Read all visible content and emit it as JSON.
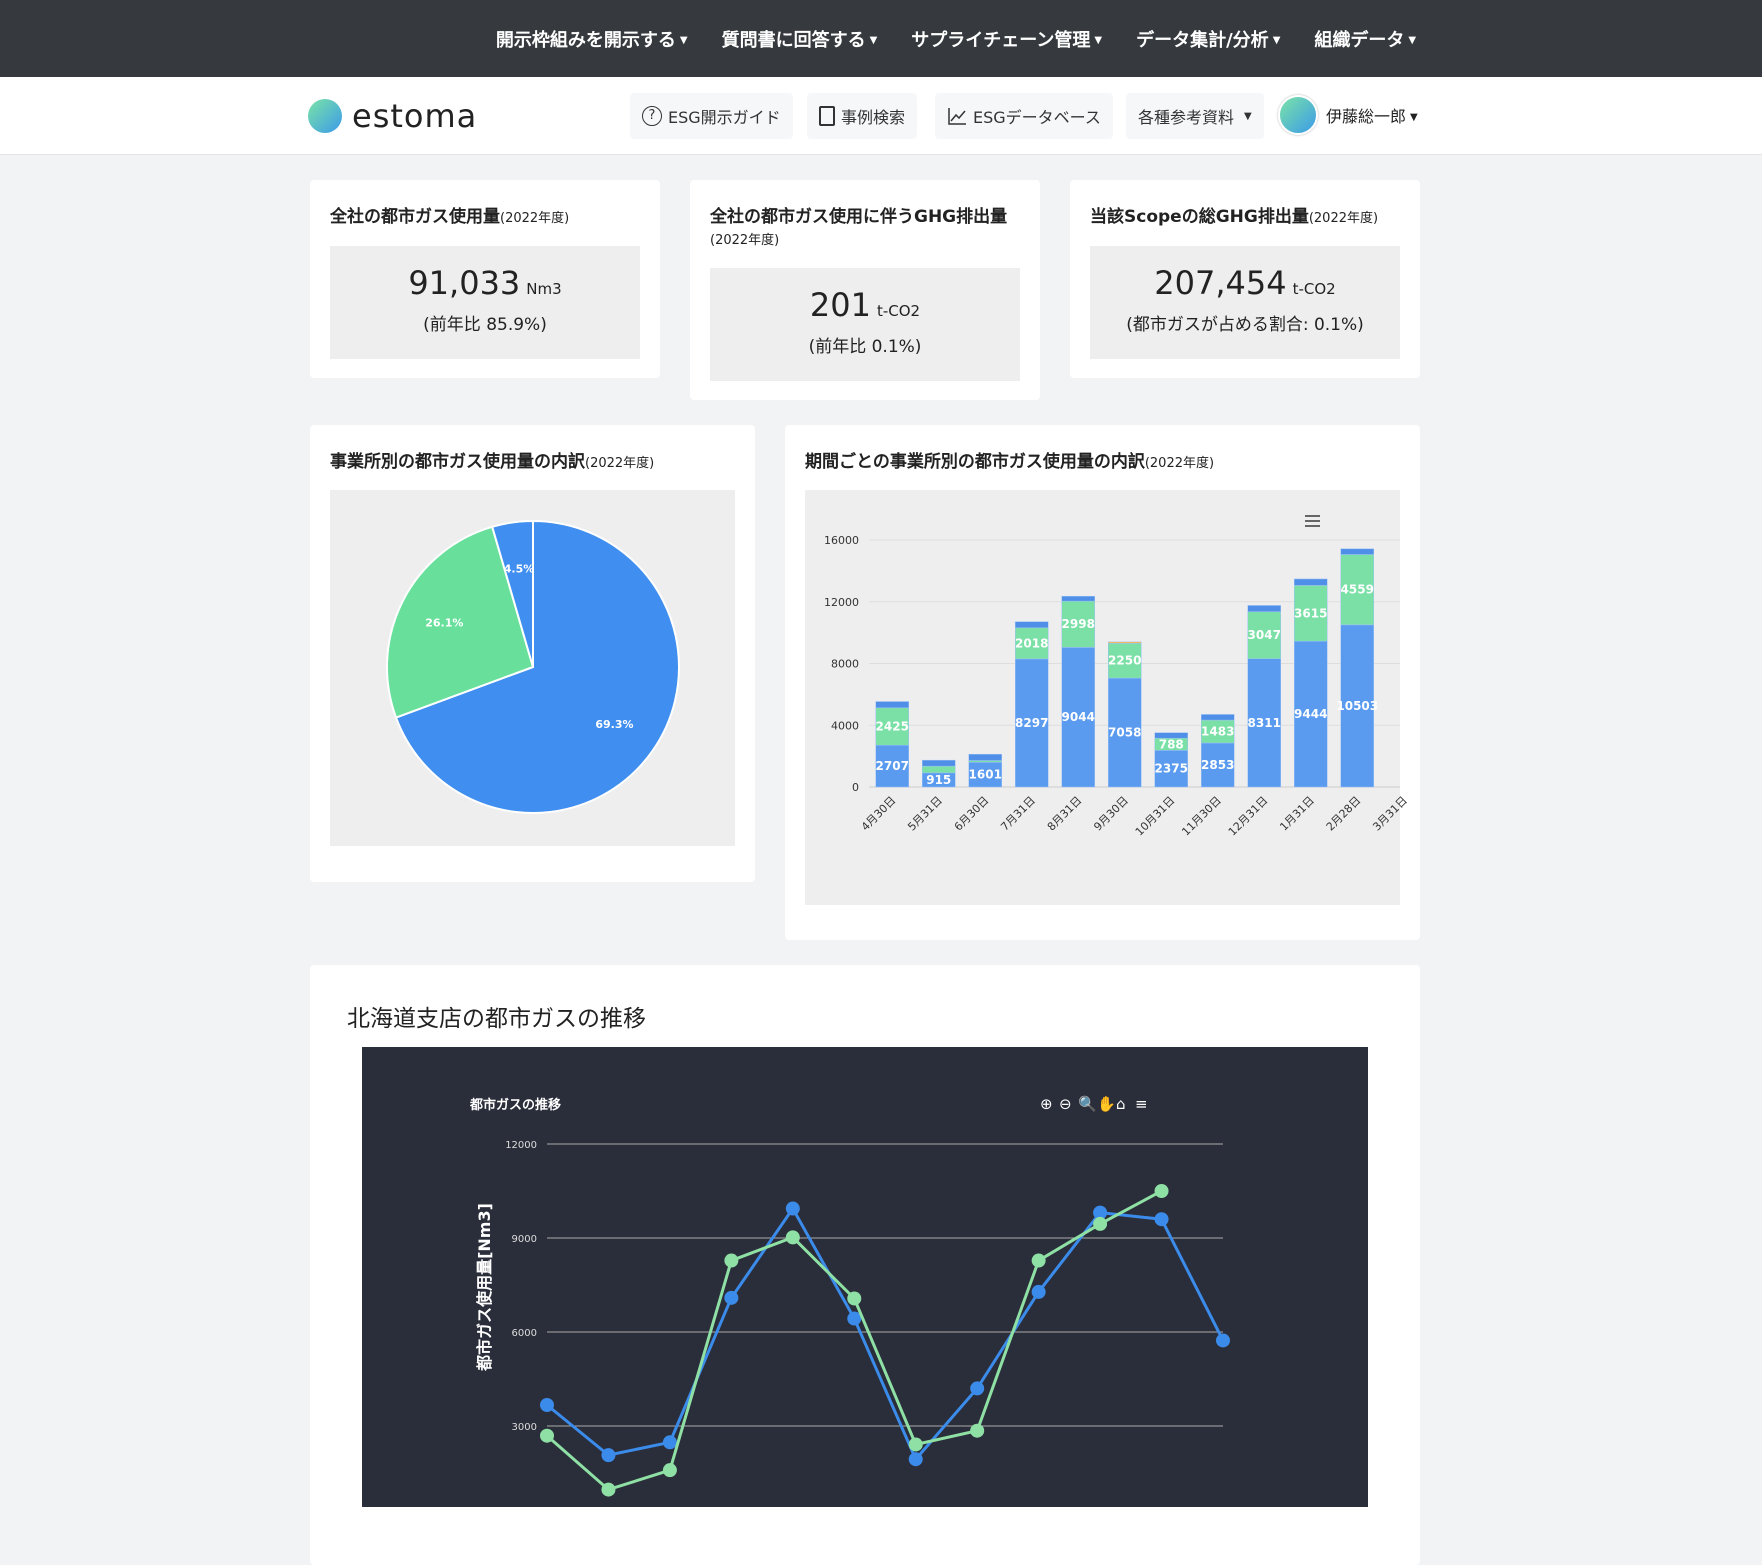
{
  "topnav": [
    {
      "label": "開示枠組みを開示する"
    },
    {
      "label": "質問書に回答する"
    },
    {
      "label": "サプライチェーン管理"
    },
    {
      "label": "データ集計/分析"
    },
    {
      "label": "組織データ"
    }
  ],
  "header": {
    "logo": "estoma",
    "buttons": [
      {
        "label": "ESG開示ガイド",
        "icon": "question-circle-icon"
      },
      {
        "label": "事例検索",
        "icon": "book-icon"
      },
      {
        "label": "ESGデータベース",
        "icon": "line-chart-icon"
      },
      {
        "label": "各種参考資料"
      }
    ],
    "user": "伊藤総一郎"
  },
  "kpis": [
    {
      "title": "全社の都市ガス使用量",
      "period": "(2022年度)",
      "value": "91,033",
      "unit": "Nm3",
      "sub": "(前年比 85.9%)"
    },
    {
      "title": "全社の都市ガス使用に伴うGHG排出量",
      "period": "(2022年度)",
      "value": "201",
      "unit": "t-CO2",
      "sub": "(前年比 0.1%)"
    },
    {
      "title": "当該Scopeの総GHG排出量",
      "period": "(2022年度)",
      "value": "207,454",
      "unit": "t-CO2",
      "sub": "(都市ガスが占める割合: 0.1%)"
    }
  ],
  "pie_card": {
    "title": "事業所別の都市ガス使用量の内訳",
    "period": "(2022年度)"
  },
  "bar_card": {
    "title": "期間ごとの事業所別の都市ガス使用量の内訳",
    "period": "(2022年度)"
  },
  "line_card": {
    "title": "北海道支店の都市ガスの推移"
  },
  "chart_data": [
    {
      "type": "pie",
      "slices": [
        {
          "value": 69.3,
          "label": "69.3%",
          "color": "#3f8ef0"
        },
        {
          "value": 26.1,
          "label": "26.1%",
          "color": "#68e09c"
        },
        {
          "value": 4.5,
          "label": "4.5%",
          "color": "#3f8ef0"
        }
      ]
    },
    {
      "type": "bar",
      "stacked": true,
      "categories": [
        "4月30日",
        "5月31日",
        "6月30日",
        "7月31日",
        "8月31日",
        "9月30日",
        "10月31日",
        "11月30日",
        "12月31日",
        "1月31日",
        "2月28日",
        "3月31日"
      ],
      "ylim": [
        0,
        16000
      ],
      "yticks": [
        0,
        4000,
        8000,
        12000,
        16000
      ],
      "grid": true,
      "series": [
        {
          "color": "#5a9bf0",
          "values": [
            2707,
            915,
            1601,
            8297,
            9044,
            7058,
            2375,
            2853,
            8311,
            9444,
            10503,
            null
          ],
          "labels": true
        },
        {
          "color": "#7be0a6",
          "values": [
            2425,
            437,
            116,
            2018,
            2998,
            2250,
            788,
            1483,
            3047,
            3615,
            4559,
            null
          ],
          "labels": [
            true,
            false,
            false,
            true,
            true,
            true,
            true,
            true,
            true,
            true,
            true,
            false
          ]
        },
        {
          "color": "#fcb44c",
          "values": [
            0,
            0,
            0,
            0,
            0,
            91,
            0,
            0,
            0,
            0,
            0,
            null
          ]
        },
        {
          "color": "#4f8fe8",
          "values": [
            404,
            386,
            407,
            393,
            318,
            0,
            356,
            364,
            402,
            417,
            367,
            null
          ]
        }
      ]
    },
    {
      "type": "line",
      "title": "都市ガスの推移",
      "ylabel": "都市ガス使用量[Nm3]",
      "yticks": [
        3000,
        6000,
        9000,
        12000
      ],
      "grid": true,
      "background": "#2a2d3a",
      "series": [
        {
          "color": "#3b8bea",
          "values": [
            3670,
            2070,
            2480,
            7090,
            9940,
            6430,
            1940,
            4200,
            7280,
            9810,
            9600,
            5730
          ]
        },
        {
          "color": "#8fe0a4",
          "values": [
            2690,
            970,
            1590,
            8280,
            9020,
            7070,
            2410,
            2850,
            8280,
            9450,
            10500
          ]
        }
      ],
      "toolbar": [
        "zoom-in-icon",
        "zoom-out-icon",
        "magnifier-icon",
        "pan-hand-icon",
        "home-icon",
        "menu-icon"
      ]
    }
  ]
}
